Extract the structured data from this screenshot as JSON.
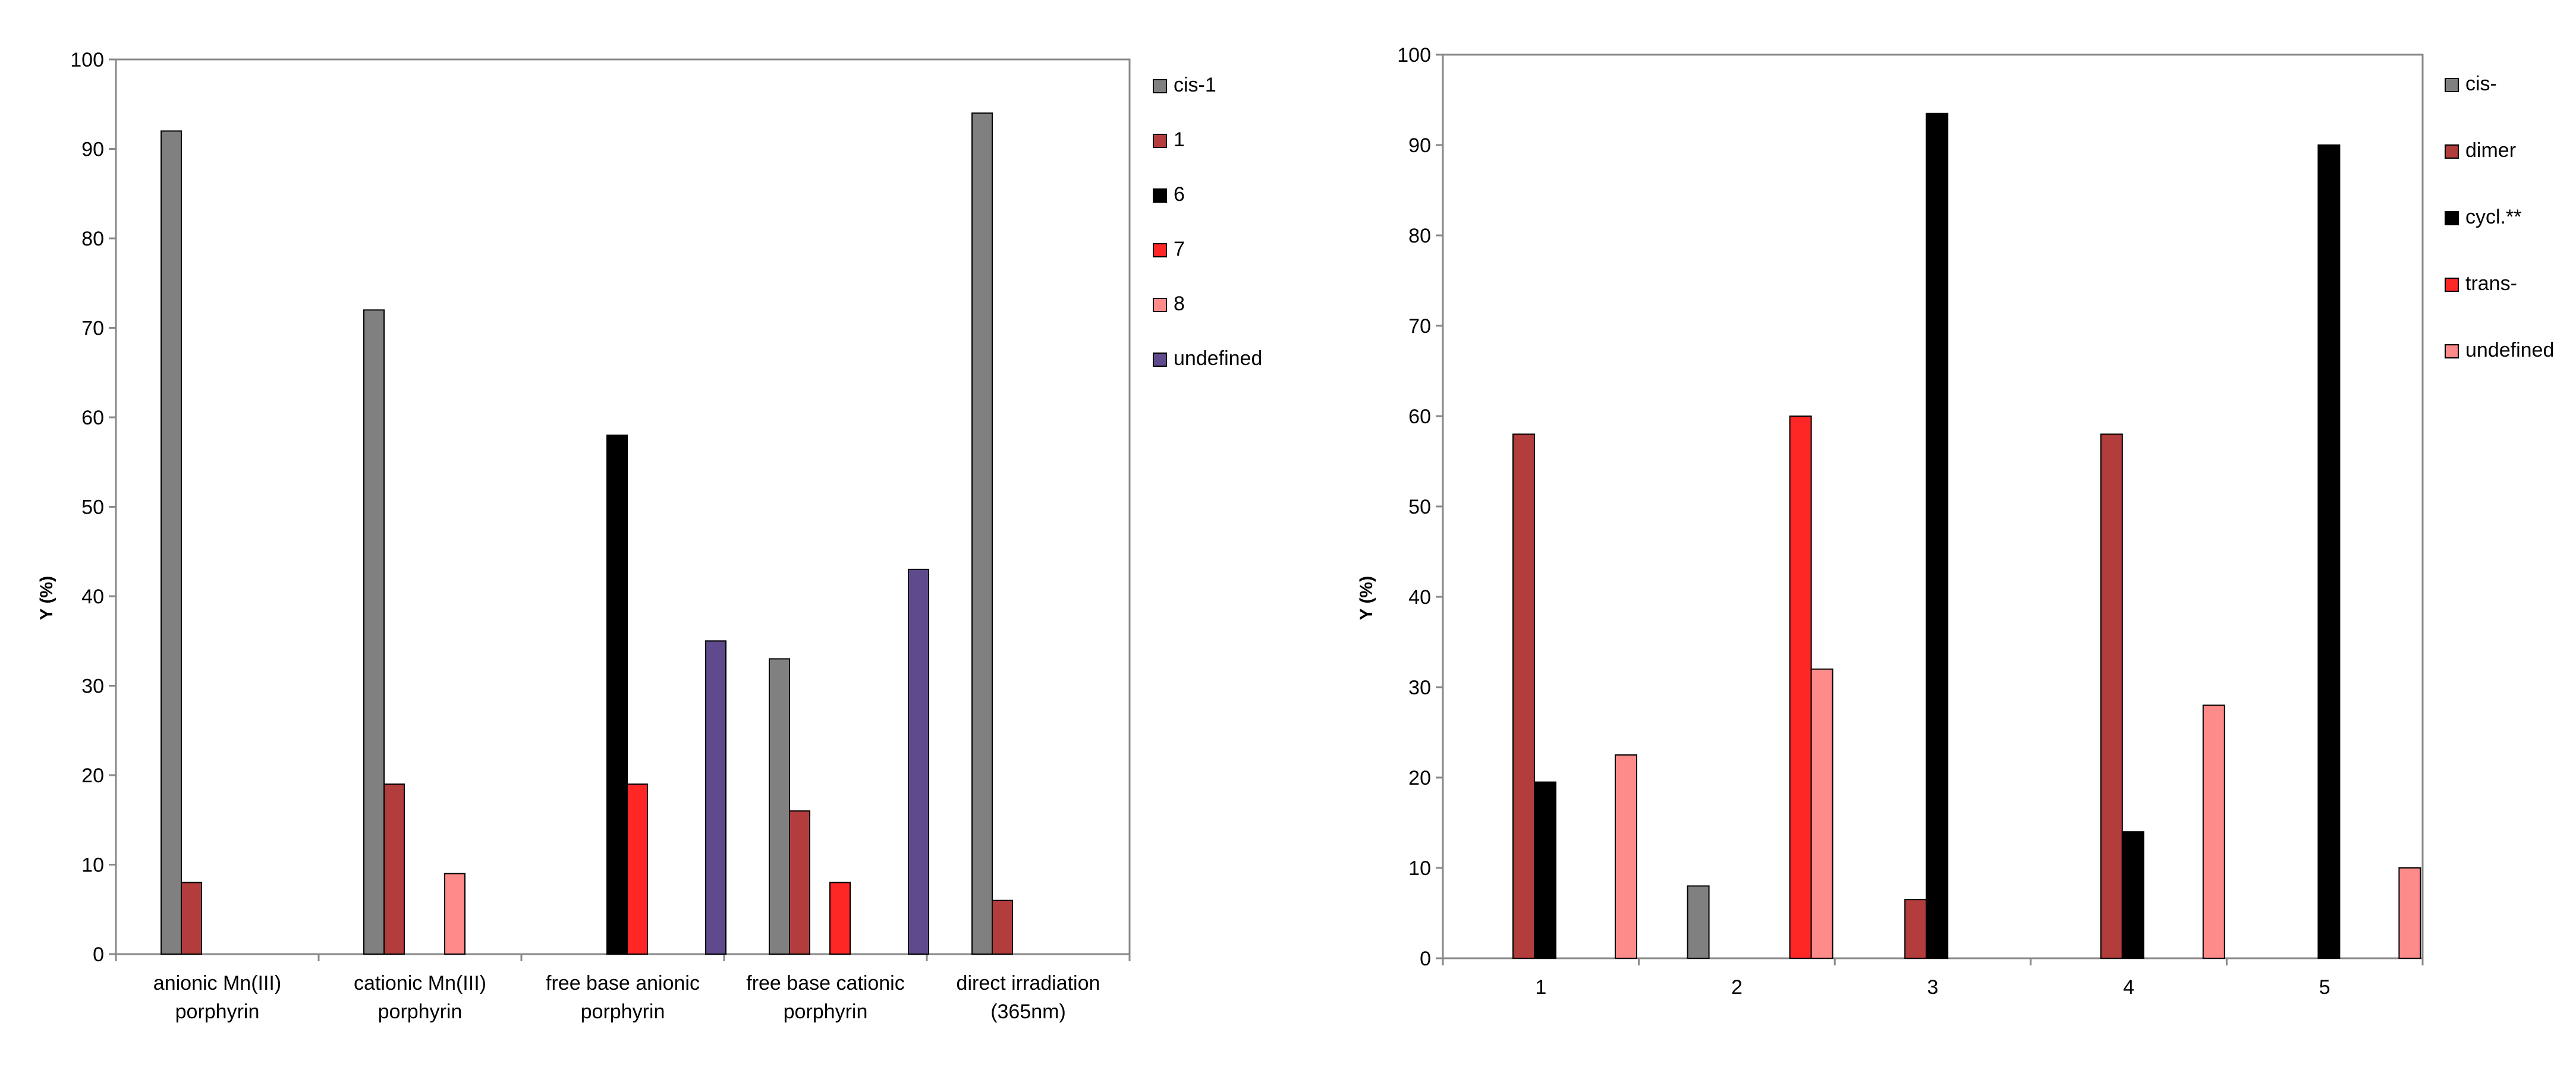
{
  "colors": {
    "gray": "#808080",
    "darkred": "#B33C3C",
    "black": "#000000",
    "red": "#FF2626",
    "pink": "#FF8A8A",
    "purple": "#5E4A8C"
  },
  "chart_data": [
    {
      "type": "bar",
      "title": "",
      "xlabel": "",
      "ylabel": "Y (%)",
      "ylim": [
        0,
        100
      ],
      "yticks": [
        0,
        10,
        20,
        30,
        40,
        50,
        60,
        70,
        80,
        90,
        100
      ],
      "categories": [
        [
          "anionic Mn(III)",
          "porphyrin"
        ],
        [
          "cationic Mn(III)",
          "porphyrin"
        ],
        [
          "free base anionic",
          "porphyrin"
        ],
        [
          "free base cationic",
          "porphyrin"
        ],
        [
          "direct irradiation",
          "(365nm)"
        ]
      ],
      "legend_position": "right",
      "series": [
        {
          "name": "cis-1",
          "color": "#808080",
          "values": [
            92,
            72,
            null,
            33,
            94
          ]
        },
        {
          "name": "1",
          "color": "#B33C3C",
          "values": [
            8,
            19,
            null,
            16,
            6
          ]
        },
        {
          "name": "6",
          "color": "#000000",
          "values": [
            null,
            null,
            58,
            null,
            null
          ]
        },
        {
          "name": "7",
          "color": "#FF2626",
          "values": [
            null,
            null,
            19,
            8,
            null
          ]
        },
        {
          "name": "8",
          "color": "#FF8A8A",
          "values": [
            null,
            9,
            null,
            null,
            null
          ]
        },
        {
          "name": "undefined",
          "color": "#5E4A8C",
          "values": [
            null,
            null,
            35,
            43,
            null
          ]
        }
      ]
    },
    {
      "type": "bar",
      "title": "",
      "xlabel": "",
      "ylabel": "Y (%)",
      "ylim": [
        0,
        100
      ],
      "yticks": [
        0,
        10,
        20,
        30,
        40,
        50,
        60,
        70,
        80,
        90,
        100
      ],
      "categories": [
        [
          "1"
        ],
        [
          "2"
        ],
        [
          "3"
        ],
        [
          "4"
        ],
        [
          "5"
        ]
      ],
      "legend_position": "right",
      "series": [
        {
          "name": "cis-",
          "color": "#808080",
          "values": [
            null,
            8,
            null,
            null,
            null
          ]
        },
        {
          "name": "dimer",
          "color": "#B33C3C",
          "values": [
            58,
            null,
            6.5,
            58,
            null
          ]
        },
        {
          "name": "cycl.**",
          "color": "#000000",
          "values": [
            19.5,
            null,
            93.5,
            14,
            90
          ]
        },
        {
          "name": "trans-",
          "color": "#FF2626",
          "values": [
            null,
            60,
            null,
            null,
            null
          ]
        },
        {
          "name": "undefined",
          "color": "#FF8A8A",
          "values": [
            22.5,
            32,
            null,
            28,
            10
          ]
        }
      ]
    }
  ]
}
